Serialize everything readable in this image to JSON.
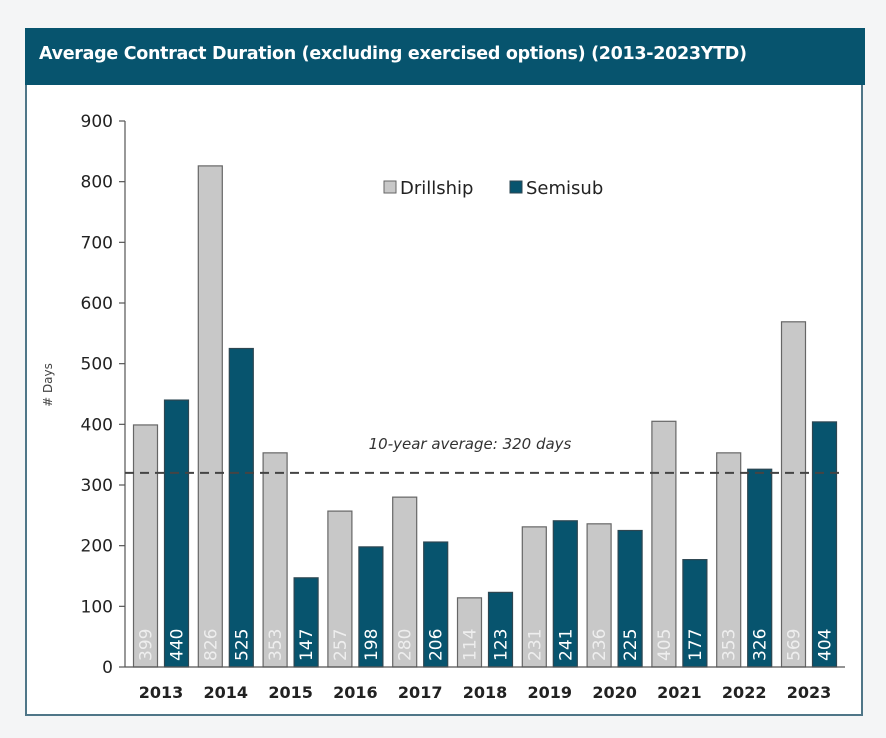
{
  "chart_data": {
    "type": "bar",
    "title": "Average Contract Duration (excluding exercised options) (2013-2023YTD)",
    "xlabel": "",
    "ylabel": "# Days",
    "ylim": [
      0,
      900
    ],
    "yticks": [
      0,
      100,
      200,
      300,
      400,
      500,
      600,
      700,
      800,
      900
    ],
    "categories": [
      "2013",
      "2014",
      "2015",
      "2016",
      "2017",
      "2018",
      "2019",
      "2020",
      "2021",
      "2022",
      "2023"
    ],
    "series": [
      {
        "name": "Drillship",
        "color": "#c8c8c8",
        "label_color": "#eeeeee",
        "values": [
          399,
          826,
          353,
          257,
          280,
          114,
          231,
          236,
          405,
          353,
          569
        ]
      },
      {
        "name": "Semisub",
        "color": "#07546e",
        "label_color": "#ffffff",
        "values": [
          440,
          525,
          147,
          198,
          206,
          123,
          241,
          225,
          177,
          326,
          404
        ]
      }
    ],
    "reference_line": {
      "value": 320,
      "label": "10-year average: 320 days",
      "style": "dashed",
      "color": "#444444"
    },
    "legend": {
      "position": "top-center"
    },
    "grid": false
  },
  "header": {
    "title": "Average Contract Duration (excluding exercised options) (2013-2023YTD)"
  }
}
